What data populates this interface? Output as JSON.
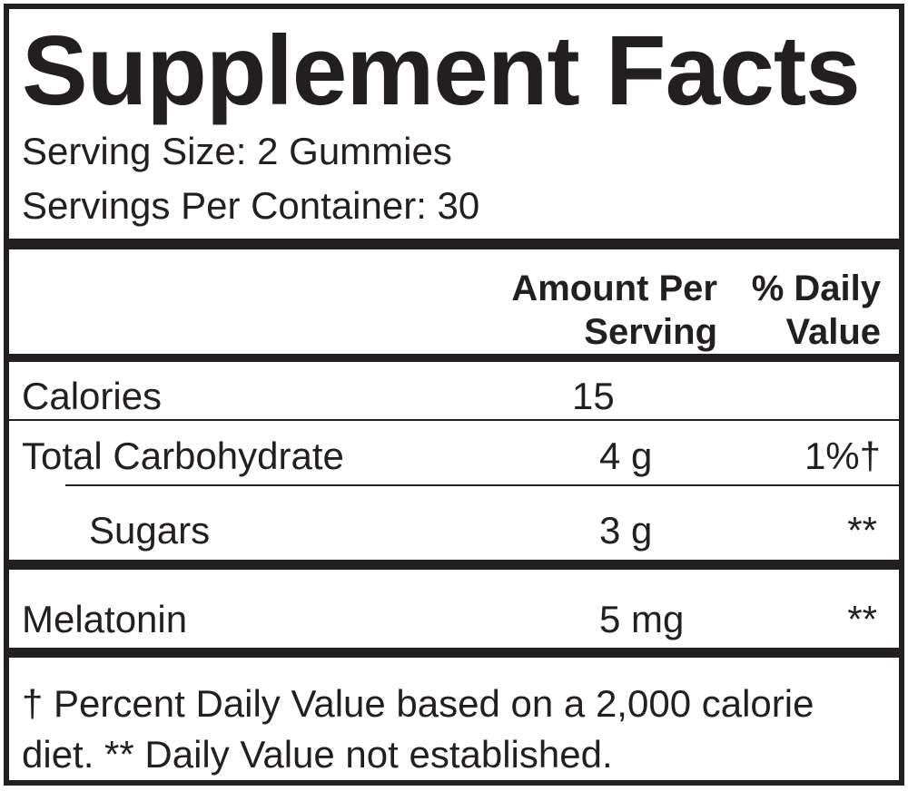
{
  "header": {
    "title": "Supplement Facts",
    "serving_size": "Serving Size: 2 Gummies",
    "servings_per_container": "Servings Per Container: 30"
  },
  "table": {
    "columns": [
      "Amount Per Serving",
      "% Daily Value"
    ],
    "rows": [
      [
        "Calories",
        "15"
      ],
      [
        "Total Carbohydrate",
        "4 g",
        "1%†"
      ],
      [
        "Sugars",
        "3 g",
        "**"
      ],
      [
        "Melatonin",
        "5 mg",
        "**"
      ]
    ]
  },
  "footnote": "† Percent Daily Value based on a 2,000 calorie diet. ** Daily Value not established."
}
